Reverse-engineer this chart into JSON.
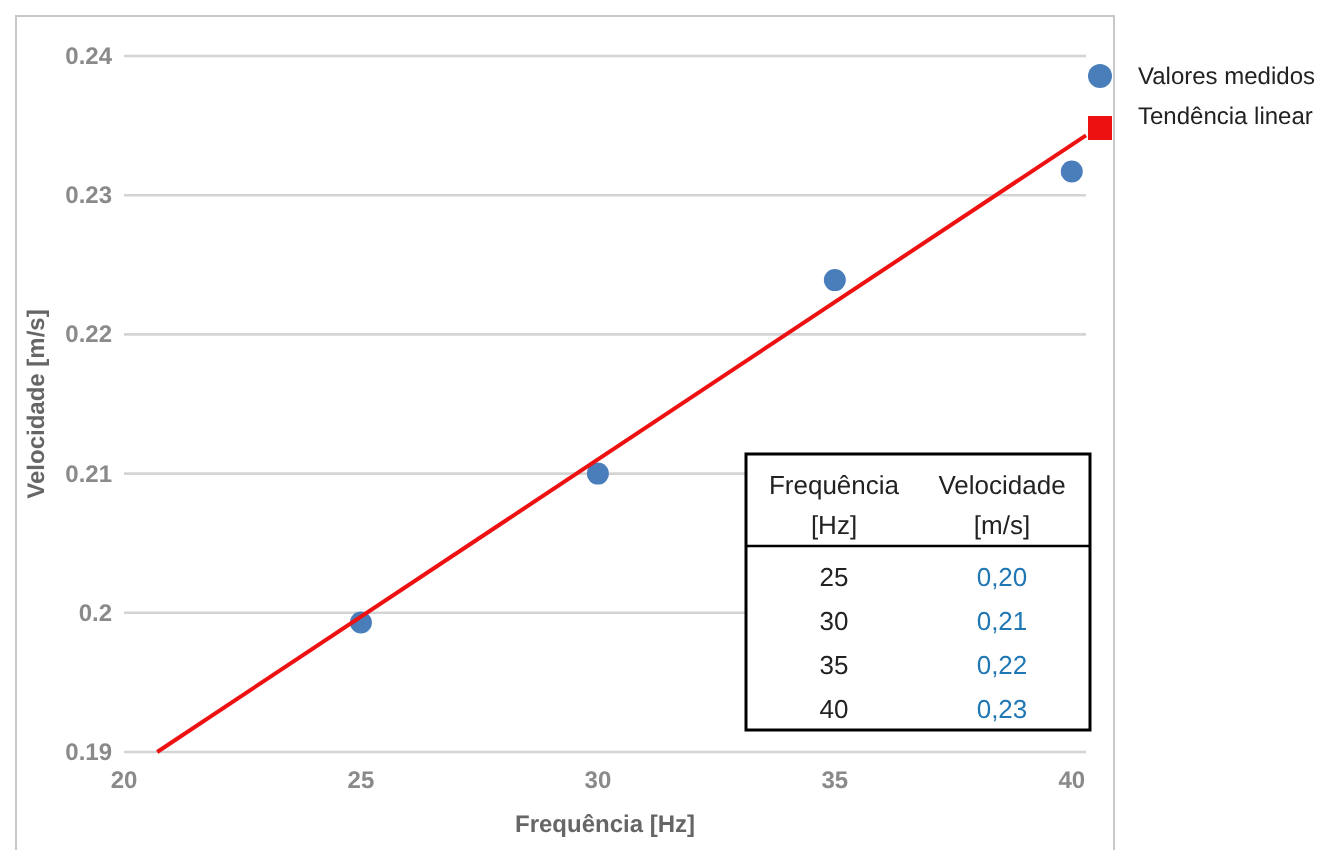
{
  "chart_data": {
    "type": "scatter",
    "xlabel": "Frequência [Hz]",
    "ylabel": "Velocidade [m/s]",
    "xlim": [
      20,
      40.3
    ],
    "xticks": [
      20,
      25,
      30,
      35,
      40
    ],
    "ylim": [
      0.19,
      0.24
    ],
    "yticks": [
      0.19,
      0.2,
      0.21,
      0.22,
      0.23,
      0.24
    ],
    "grid": "y",
    "legend": "top right",
    "series": [
      {
        "name": "Valores medidos",
        "marker": "circle",
        "color": "#4a7ebb",
        "x": [
          25,
          30,
          35,
          40
        ],
        "values": [
          0.1993,
          0.21,
          0.2239,
          0.2317
        ]
      },
      {
        "name": "Tendência linear",
        "type": "line",
        "marker": "none",
        "color": "#ee1111",
        "x": [
          20.7,
          40.3
        ],
        "values": [
          0.19,
          0.2343
        ]
      }
    ],
    "annotations": [
      "Frequência [Hz]",
      "Velocidade [m/s]",
      "25",
      "0,20",
      "30",
      "0,21",
      "35",
      "0,22",
      "40",
      "0,23"
    ]
  }
}
